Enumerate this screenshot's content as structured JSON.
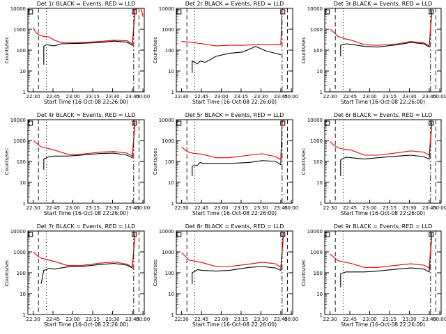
{
  "figure": {
    "xlabel": "Start Time (16-Oct-08 22:26:00)",
    "ylabel": "Counts/sec",
    "x_ticks": [
      "22:30",
      "22:45",
      "23:00",
      "23:15",
      "23:30",
      "23:45",
      "00:00"
    ],
    "y_ticks": [
      "1",
      "10",
      "100",
      "1000",
      "10000"
    ]
  },
  "chart_data": [
    {
      "type": "line",
      "title": "Det 1r BLACK = Events, RED = LLD",
      "ylim": [
        1,
        10000
      ],
      "x_unit": "minutes from 22:26",
      "series": [
        {
          "name": "Events",
          "color": "#000000",
          "x": [
            4,
            10,
            12,
            12,
            14,
            20,
            25,
            40,
            55,
            65,
            75,
            79,
            81
          ],
          "values": [
            null,
            null,
            20,
            150,
            180,
            160,
            200,
            210,
            230,
            270,
            240,
            170,
            7000
          ]
        },
        {
          "name": "LLD",
          "color": "#dd0000",
          "x": [
            4,
            6,
            8,
            12,
            16,
            20,
            25,
            40,
            55,
            65,
            75,
            79,
            81,
            84,
            85,
            86,
            87
          ],
          "values": [
            1200,
            700,
            550,
            450,
            420,
            300,
            230,
            230,
            260,
            300,
            280,
            200,
            9000,
            10000,
            10000,
            8000,
            4000
          ]
        }
      ]
    },
    {
      "type": "line",
      "title": "Det 2r BLACK = Events, RED = LLD",
      "ylim": [
        1,
        10000
      ],
      "x_unit": "minutes from 22:26",
      "series": [
        {
          "name": "Events",
          "color": "#000000",
          "x": [
            12,
            12,
            16,
            18,
            22,
            30,
            40,
            50,
            60,
            68,
            75,
            79
          ],
          "values": [
            8,
            30,
            22,
            30,
            26,
            50,
            70,
            80,
            150,
            90,
            70,
            60
          ]
        },
        {
          "name": "LLD",
          "color": "#dd0000",
          "x": [
            4,
            10,
            20,
            30,
            40,
            50,
            60,
            70,
            79,
            80,
            81
          ],
          "values": [
            260,
            240,
            200,
            160,
            170,
            170,
            180,
            180,
            180,
            9000,
            10000
          ]
        }
      ]
    },
    {
      "type": "line",
      "title": "Det 3r BLACK = Events, RED = LLD",
      "ylim": [
        1,
        10000
      ],
      "x_unit": "minutes from 22:26",
      "series": [
        {
          "name": "Events",
          "color": "#000000",
          "x": [
            10,
            12,
            12,
            16,
            20,
            30,
            40,
            55,
            65,
            75,
            79,
            81
          ],
          "values": [
            null,
            50,
            170,
            200,
            190,
            150,
            140,
            180,
            230,
            200,
            140,
            7000
          ]
        },
        {
          "name": "LLD",
          "color": "#dd0000",
          "x": [
            4,
            7,
            10,
            15,
            20,
            30,
            40,
            55,
            65,
            75,
            79,
            81
          ],
          "values": [
            1000,
            700,
            450,
            350,
            300,
            180,
            170,
            200,
            260,
            220,
            160,
            9000
          ]
        }
      ]
    },
    {
      "type": "line",
      "title": "Det 4r BLACK = Events, RED = LLD",
      "ylim": [
        1,
        10000
      ],
      "x_unit": "minutes from 22:26",
      "series": [
        {
          "name": "Events",
          "color": "#000000",
          "x": [
            12,
            12,
            16,
            20,
            30,
            40,
            55,
            65,
            75,
            79,
            81
          ],
          "values": [
            40,
            130,
            170,
            180,
            180,
            200,
            240,
            250,
            200,
            150,
            7000
          ]
        },
        {
          "name": "LLD",
          "color": "#dd0000",
          "x": [
            4,
            7,
            10,
            15,
            20,
            30,
            40,
            55,
            65,
            75,
            79,
            81
          ],
          "values": [
            1000,
            700,
            500,
            420,
            350,
            220,
            220,
            280,
            300,
            250,
            180,
            9000
          ]
        }
      ]
    },
    {
      "type": "line",
      "title": "Det 5r BLACK = Events, RED = LLD",
      "ylim": [
        1,
        10000
      ],
      "x_unit": "minutes from 22:26",
      "series": [
        {
          "name": "Events",
          "color": "#000000",
          "x": [
            12,
            12,
            16,
            18,
            20,
            30,
            40,
            55,
            65,
            75,
            79,
            80
          ],
          "values": [
            20,
            60,
            65,
            90,
            80,
            80,
            80,
            90,
            110,
            100,
            70,
            9000
          ]
        },
        {
          "name": "LLD",
          "color": "#dd0000",
          "x": [
            4,
            8,
            12,
            20,
            30,
            40,
            55,
            65,
            75,
            79,
            80,
            81
          ],
          "values": [
            500,
            300,
            250,
            220,
            150,
            150,
            200,
            230,
            170,
            120,
            7000,
            10000
          ]
        }
      ]
    },
    {
      "type": "line",
      "title": "Det 6r BLACK = Events, RED = LLD",
      "ylim": [
        1,
        10000
      ],
      "x_unit": "minutes from 22:26",
      "series": [
        {
          "name": "Events",
          "color": "#000000",
          "x": [
            12,
            12,
            16,
            20,
            30,
            40,
            55,
            65,
            75,
            79,
            81
          ],
          "values": [
            20,
            120,
            160,
            150,
            130,
            150,
            180,
            200,
            170,
            130,
            7000
          ]
        },
        {
          "name": "LLD",
          "color": "#dd0000",
          "x": [
            4,
            7,
            10,
            15,
            20,
            30,
            40,
            55,
            65,
            75,
            79,
            81
          ],
          "values": [
            900,
            600,
            450,
            380,
            350,
            200,
            200,
            260,
            320,
            280,
            200,
            9000
          ]
        }
      ]
    },
    {
      "type": "line",
      "title": "Det 7r BLACK = Events, RED = LLD",
      "ylim": [
        1,
        10000
      ],
      "x_unit": "minutes from 22:26",
      "series": [
        {
          "name": "Events",
          "color": "#000000",
          "x": [
            10,
            12,
            16,
            20,
            30,
            40,
            55,
            65,
            75,
            79,
            81
          ],
          "values": [
            30,
            130,
            160,
            150,
            190,
            200,
            250,
            280,
            230,
            170,
            7000
          ]
        },
        {
          "name": "LLD",
          "color": "#dd0000",
          "x": [
            4,
            7,
            10,
            15,
            20,
            30,
            40,
            55,
            65,
            75,
            79,
            81
          ],
          "values": [
            1000,
            650,
            500,
            420,
            350,
            220,
            220,
            290,
            330,
            260,
            180,
            9000
          ]
        }
      ]
    },
    {
      "type": "line",
      "title": "Det 8r BLACK = Events, RED = LLD",
      "ylim": [
        1,
        10000
      ],
      "x_unit": "minutes from 22:26",
      "series": [
        {
          "name": "Events",
          "color": "#000000",
          "x": [
            12,
            12,
            16,
            20,
            30,
            40,
            55,
            65,
            75,
            79,
            81
          ],
          "values": [
            30,
            100,
            140,
            130,
            120,
            130,
            180,
            200,
            170,
            130,
            7000
          ]
        },
        {
          "name": "LLD",
          "color": "#dd0000",
          "x": [
            4,
            7,
            10,
            15,
            20,
            30,
            40,
            55,
            65,
            75,
            79,
            81
          ],
          "values": [
            900,
            600,
            400,
            350,
            300,
            200,
            200,
            260,
            320,
            270,
            180,
            9000
          ]
        }
      ]
    },
    {
      "type": "line",
      "title": "Det 9r BLACK = Events, RED = LLD",
      "ylim": [
        1,
        10000
      ],
      "x_unit": "minutes from 22:26",
      "series": [
        {
          "name": "Events",
          "color": "#000000",
          "x": [
            12,
            12,
            16,
            20,
            30,
            40,
            55,
            65,
            75,
            79,
            81
          ],
          "values": [
            20,
            90,
            110,
            110,
            110,
            120,
            150,
            170,
            150,
            110,
            7000
          ]
        },
        {
          "name": "LLD",
          "color": "#dd0000",
          "x": [
            4,
            7,
            10,
            15,
            20,
            30,
            40,
            55,
            65,
            75,
            79,
            81
          ],
          "values": [
            800,
            550,
            380,
            320,
            280,
            180,
            180,
            230,
            270,
            230,
            170,
            9000
          ]
        }
      ]
    }
  ]
}
